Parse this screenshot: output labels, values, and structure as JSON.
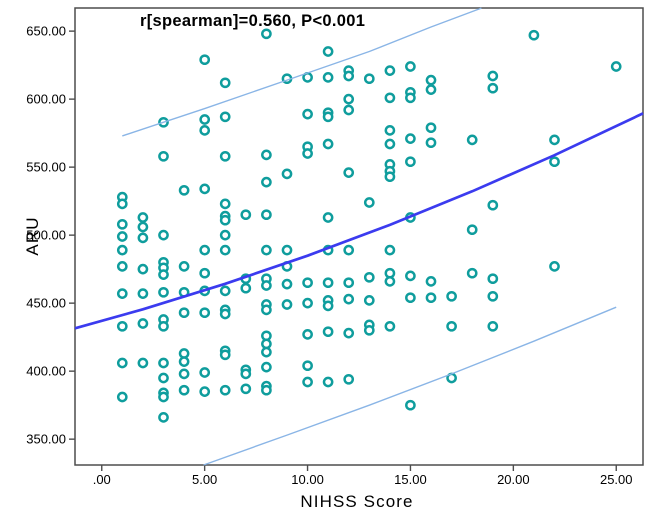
{
  "chart_data": {
    "type": "scatter",
    "title": "r[spearman]=0.560, P<0.001",
    "xlabel": "NIHSS Score",
    "ylabel": "ARU",
    "stats": {
      "spearman_r": "0.560",
      "p_value": "P<0.001"
    },
    "xlim": [
      -1.3,
      26.3
    ],
    "ylim": [
      331,
      667
    ],
    "grid": false,
    "legend": "none",
    "x_ticks": {
      "values": [
        0,
        5,
        10,
        15,
        20,
        25
      ],
      "labels": [
        ".00",
        "5.00",
        "10.00",
        "15.00",
        "20.00",
        "25.00"
      ]
    },
    "y_ticks": {
      "values": [
        350,
        400,
        450,
        500,
        550,
        600,
        650
      ],
      "labels": [
        "350.00",
        "400.00",
        "450.00",
        "500.00",
        "550.00",
        "600.00",
        "650.00"
      ]
    },
    "colors": {
      "point_stroke": "#0f9d9d",
      "point_fill": "#ffffff",
      "fit_line": "#3b3bef",
      "ci_line": "#8ab5e6",
      "frame": "#4d4d4d",
      "text": "#000000",
      "background": "#ffffff"
    },
    "marker": {
      "shape": "circle",
      "radius": 4.1,
      "stroke_width": 2.5
    },
    "fit_line": {
      "name": "regression-fit",
      "x": [
        -1.3,
        2,
        6,
        10,
        14,
        18,
        22,
        26.3
      ],
      "y": [
        431.5,
        445.5,
        464.2,
        484.9,
        507.5,
        532.2,
        558.8,
        589.5
      ]
    },
    "ci_upper": {
      "name": "upper-confidence-band",
      "x": [
        1,
        5,
        9,
        13,
        16,
        18.45
      ],
      "y": [
        573,
        593,
        614,
        635,
        653,
        666.9
      ]
    },
    "ci_lower": {
      "name": "lower-confidence-band",
      "x": [
        4.95,
        9,
        13,
        17,
        21,
        25
      ],
      "y": [
        331,
        353,
        375,
        398,
        422,
        447
      ]
    },
    "points": [
      [
        1,
        528
      ],
      [
        1,
        523
      ],
      [
        1,
        508
      ],
      [
        1,
        499
      ],
      [
        1,
        489
      ],
      [
        1,
        477
      ],
      [
        1,
        457
      ],
      [
        1,
        433
      ],
      [
        1,
        406
      ],
      [
        1,
        381
      ],
      [
        2,
        513
      ],
      [
        2,
        506
      ],
      [
        2,
        498
      ],
      [
        2,
        475
      ],
      [
        2,
        457
      ],
      [
        2,
        435
      ],
      [
        2,
        406
      ],
      [
        3,
        583
      ],
      [
        3,
        558
      ],
      [
        3,
        500
      ],
      [
        3,
        480
      ],
      [
        3,
        476
      ],
      [
        3,
        471
      ],
      [
        3,
        458
      ],
      [
        3,
        438
      ],
      [
        3,
        433
      ],
      [
        3,
        406
      ],
      [
        3,
        395
      ],
      [
        3,
        384
      ],
      [
        3,
        381
      ],
      [
        3,
        366
      ],
      [
        4,
        533
      ],
      [
        4,
        477
      ],
      [
        4,
        458
      ],
      [
        4,
        443
      ],
      [
        4,
        413
      ],
      [
        4,
        407
      ],
      [
        4,
        398
      ],
      [
        4,
        386
      ],
      [
        5,
        629
      ],
      [
        5,
        585
      ],
      [
        5,
        577
      ],
      [
        5,
        534
      ],
      [
        5,
        489
      ],
      [
        5,
        472
      ],
      [
        5,
        459
      ],
      [
        5,
        443
      ],
      [
        5,
        399
      ],
      [
        5,
        385
      ],
      [
        6,
        612
      ],
      [
        6,
        587
      ],
      [
        6,
        558
      ],
      [
        6,
        523
      ],
      [
        6,
        514
      ],
      [
        6,
        511
      ],
      [
        6,
        500
      ],
      [
        6,
        489
      ],
      [
        6,
        459
      ],
      [
        6,
        445
      ],
      [
        6,
        442
      ],
      [
        6,
        415
      ],
      [
        6,
        412
      ],
      [
        6,
        386
      ],
      [
        7,
        515
      ],
      [
        7,
        468
      ],
      [
        7,
        461
      ],
      [
        7,
        401
      ],
      [
        7,
        398
      ],
      [
        7,
        387
      ],
      [
        8,
        648
      ],
      [
        8,
        559
      ],
      [
        8,
        539
      ],
      [
        8,
        515
      ],
      [
        8,
        489
      ],
      [
        8,
        468
      ],
      [
        8,
        463
      ],
      [
        8,
        449
      ],
      [
        8,
        445
      ],
      [
        8,
        426
      ],
      [
        8,
        420
      ],
      [
        8,
        414
      ],
      [
        8,
        403
      ],
      [
        8,
        389
      ],
      [
        8,
        386
      ],
      [
        9,
        615
      ],
      [
        9,
        545
      ],
      [
        9,
        489
      ],
      [
        9,
        477
      ],
      [
        9,
        464
      ],
      [
        9,
        449
      ],
      [
        10,
        616
      ],
      [
        10,
        589
      ],
      [
        10,
        565
      ],
      [
        10,
        560
      ],
      [
        10,
        465
      ],
      [
        10,
        450
      ],
      [
        10,
        427
      ],
      [
        10,
        404
      ],
      [
        10,
        392
      ],
      [
        11,
        635
      ],
      [
        11,
        616
      ],
      [
        11,
        590
      ],
      [
        11,
        587
      ],
      [
        11,
        567
      ],
      [
        11,
        513
      ],
      [
        11,
        489
      ],
      [
        11,
        465
      ],
      [
        11,
        452
      ],
      [
        11,
        448
      ],
      [
        11,
        429
      ],
      [
        11,
        392
      ],
      [
        12,
        621
      ],
      [
        12,
        617
      ],
      [
        12,
        600
      ],
      [
        12,
        592
      ],
      [
        12,
        546
      ],
      [
        12,
        489
      ],
      [
        12,
        465
      ],
      [
        12,
        453
      ],
      [
        12,
        428
      ],
      [
        12,
        394
      ],
      [
        13,
        615
      ],
      [
        13,
        524
      ],
      [
        13,
        469
      ],
      [
        13,
        452
      ],
      [
        13,
        434
      ],
      [
        13,
        430
      ],
      [
        14,
        621
      ],
      [
        14,
        601
      ],
      [
        14,
        577
      ],
      [
        14,
        567
      ],
      [
        14,
        552
      ],
      [
        14,
        547
      ],
      [
        14,
        543
      ],
      [
        14,
        489
      ],
      [
        14,
        472
      ],
      [
        14,
        466
      ],
      [
        14,
        433
      ],
      [
        15,
        624
      ],
      [
        15,
        605
      ],
      [
        15,
        601
      ],
      [
        15,
        571
      ],
      [
        15,
        554
      ],
      [
        15,
        513
      ],
      [
        15,
        470
      ],
      [
        15,
        454
      ],
      [
        15,
        375
      ],
      [
        16,
        614
      ],
      [
        16,
        607
      ],
      [
        16,
        579
      ],
      [
        16,
        568
      ],
      [
        16,
        466
      ],
      [
        16,
        454
      ],
      [
        17,
        455
      ],
      [
        17,
        433
      ],
      [
        17,
        395
      ],
      [
        18,
        570
      ],
      [
        18,
        504
      ],
      [
        18,
        472
      ],
      [
        19,
        617
      ],
      [
        19,
        608
      ],
      [
        19,
        522
      ],
      [
        19,
        468
      ],
      [
        19,
        455
      ],
      [
        19,
        433
      ],
      [
        21,
        647
      ],
      [
        22,
        570
      ],
      [
        22,
        554
      ],
      [
        22,
        477
      ],
      [
        25,
        624
      ]
    ]
  }
}
